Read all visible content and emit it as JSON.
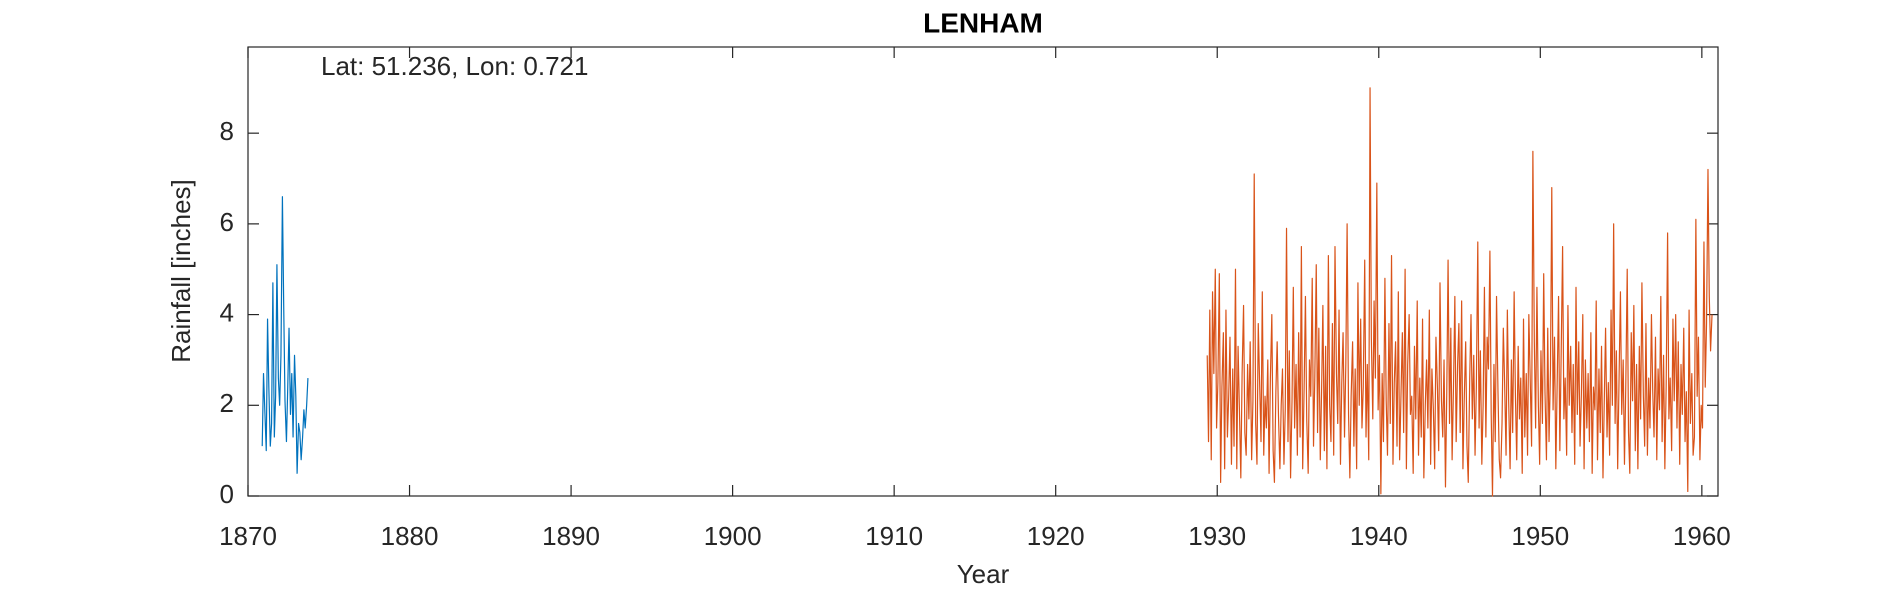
{
  "chart_data": {
    "type": "line",
    "title": "LENHAM",
    "annotation": "Lat: 51.236, Lon: 0.721",
    "xlabel": "Year",
    "ylabel": "Rainfall [inches]",
    "xlim": [
      1870,
      1961
    ],
    "xticks": [
      1870,
      1880,
      1890,
      1900,
      1910,
      1920,
      1930,
      1940,
      1950,
      1960
    ],
    "ylim": [
      0,
      9.9
    ],
    "yticks": [
      0,
      2,
      4,
      6,
      8
    ],
    "series": [
      {
        "color": "#0072BD",
        "x": [
          1870.88,
          1870.96,
          1871.04,
          1871.13,
          1871.21,
          1871.29,
          1871.38,
          1871.46,
          1871.54,
          1871.63,
          1871.71,
          1871.79,
          1871.88,
          1871.96,
          1872.04,
          1872.13,
          1872.21,
          1872.29,
          1872.38,
          1872.46,
          1872.54,
          1872.63,
          1872.71,
          1872.79,
          1872.88,
          1872.96,
          1873.04,
          1873.13,
          1873.21,
          1873.29,
          1873.38,
          1873.46,
          1873.54,
          1873.63,
          1873.71
        ],
        "values": [
          1.1,
          2.7,
          1.9,
          1.0,
          3.9,
          2.4,
          1.1,
          1.6,
          4.7,
          1.3,
          2.2,
          5.1,
          2.6,
          2.0,
          3.1,
          6.6,
          4.2,
          2.1,
          1.2,
          2.4,
          3.7,
          1.8,
          2.7,
          1.3,
          3.1,
          2.2,
          0.5,
          1.6,
          1.4,
          0.8,
          1.3,
          1.9,
          1.5,
          2.0,
          2.6
        ]
      },
      {
        "color": "#D95319",
        "x": [
          1929.38,
          1929.46,
          1929.54,
          1929.63,
          1929.71,
          1929.79,
          1929.88,
          1929.96,
          1930.04,
          1930.13,
          1930.21,
          1930.29,
          1930.38,
          1930.46,
          1930.54,
          1930.63,
          1930.71,
          1930.79,
          1930.88,
          1930.96,
          1931.04,
          1931.13,
          1931.21,
          1931.29,
          1931.38,
          1931.46,
          1931.54,
          1931.63,
          1931.71,
          1931.79,
          1931.88,
          1931.96,
          1932.04,
          1932.13,
          1932.21,
          1932.29,
          1932.38,
          1932.46,
          1932.54,
          1932.63,
          1932.71,
          1932.79,
          1932.88,
          1932.96,
          1933.04,
          1933.13,
          1933.21,
          1933.29,
          1933.38,
          1933.46,
          1933.54,
          1933.63,
          1933.71,
          1933.79,
          1933.88,
          1933.96,
          1934.04,
          1934.13,
          1934.21,
          1934.29,
          1934.38,
          1934.46,
          1934.54,
          1934.63,
          1934.71,
          1934.79,
          1934.88,
          1934.96,
          1935.04,
          1935.13,
          1935.21,
          1935.29,
          1935.38,
          1935.46,
          1935.54,
          1935.63,
          1935.71,
          1935.79,
          1935.88,
          1935.96,
          1936.04,
          1936.13,
          1936.21,
          1936.29,
          1936.38,
          1936.46,
          1936.54,
          1936.63,
          1936.71,
          1936.79,
          1936.88,
          1936.96,
          1937.04,
          1937.13,
          1937.21,
          1937.29,
          1937.38,
          1937.46,
          1937.54,
          1937.63,
          1937.71,
          1937.79,
          1937.88,
          1937.96,
          1938.04,
          1938.13,
          1938.21,
          1938.29,
          1938.38,
          1938.46,
          1938.54,
          1938.63,
          1938.71,
          1938.79,
          1938.88,
          1938.96,
          1939.04,
          1939.13,
          1939.21,
          1939.29,
          1939.38,
          1939.46,
          1939.54,
          1939.63,
          1939.71,
          1939.79,
          1939.88,
          1939.96,
          1940.04,
          1940.13,
          1940.21,
          1940.29,
          1940.38,
          1940.46,
          1940.54,
          1940.63,
          1940.71,
          1940.79,
          1940.88,
          1940.96,
          1941.04,
          1941.13,
          1941.21,
          1941.29,
          1941.38,
          1941.46,
          1941.54,
          1941.63,
          1941.71,
          1941.79,
          1941.88,
          1941.96,
          1942.04,
          1942.13,
          1942.21,
          1942.29,
          1942.38,
          1942.46,
          1942.54,
          1942.63,
          1942.71,
          1942.79,
          1942.88,
          1942.96,
          1943.04,
          1943.13,
          1943.21,
          1943.29,
          1943.38,
          1943.46,
          1943.54,
          1943.63,
          1943.71,
          1943.79,
          1943.88,
          1943.96,
          1944.04,
          1944.13,
          1944.21,
          1944.29,
          1944.38,
          1944.46,
          1944.54,
          1944.63,
          1944.71,
          1944.79,
          1944.88,
          1944.96,
          1945.04,
          1945.13,
          1945.21,
          1945.29,
          1945.38,
          1945.46,
          1945.54,
          1945.63,
          1945.71,
          1945.79,
          1945.88,
          1945.96,
          1946.04,
          1946.13,
          1946.21,
          1946.29,
          1946.38,
          1946.46,
          1946.54,
          1946.63,
          1946.71,
          1946.79,
          1946.88,
          1946.96,
          1947.04,
          1947.13,
          1947.21,
          1947.29,
          1947.38,
          1947.46,
          1947.54,
          1947.63,
          1947.71,
          1947.79,
          1947.88,
          1947.96,
          1948.04,
          1948.13,
          1948.21,
          1948.29,
          1948.38,
          1948.46,
          1948.54,
          1948.63,
          1948.71,
          1948.79,
          1948.88,
          1948.96,
          1949.04,
          1949.13,
          1949.21,
          1949.29,
          1949.38,
          1949.46,
          1949.54,
          1949.63,
          1949.71,
          1949.79,
          1949.88,
          1949.96,
          1950.04,
          1950.13,
          1950.21,
          1950.29,
          1950.38,
          1950.46,
          1950.54,
          1950.63,
          1950.71,
          1950.79,
          1950.88,
          1950.96,
          1951.04,
          1951.13,
          1951.21,
          1951.29,
          1951.38,
          1951.46,
          1951.54,
          1951.63,
          1951.71,
          1951.79,
          1951.88,
          1951.96,
          1952.04,
          1952.13,
          1952.21,
          1952.29,
          1952.38,
          1952.46,
          1952.54,
          1952.63,
          1952.71,
          1952.79,
          1952.88,
          1952.96,
          1953.04,
          1953.13,
          1953.21,
          1953.29,
          1953.38,
          1953.46,
          1953.54,
          1953.63,
          1953.71,
          1953.79,
          1953.88,
          1953.96,
          1954.04,
          1954.13,
          1954.21,
          1954.29,
          1954.38,
          1954.46,
          1954.54,
          1954.63,
          1954.71,
          1954.79,
          1954.88,
          1954.96,
          1955.04,
          1955.13,
          1955.21,
          1955.29,
          1955.38,
          1955.46,
          1955.54,
          1955.63,
          1955.71,
          1955.79,
          1955.88,
          1955.96,
          1956.04,
          1956.13,
          1956.21,
          1956.29,
          1956.38,
          1956.46,
          1956.54,
          1956.63,
          1956.71,
          1956.79,
          1956.88,
          1956.96,
          1957.04,
          1957.13,
          1957.21,
          1957.29,
          1957.38,
          1957.46,
          1957.54,
          1957.63,
          1957.71,
          1957.79,
          1957.88,
          1957.96,
          1958.04,
          1958.13,
          1958.21,
          1958.29,
          1958.38,
          1958.46,
          1958.54,
          1958.63,
          1958.71,
          1958.79,
          1958.88,
          1958.96,
          1959.04,
          1959.13,
          1959.21,
          1959.29,
          1959.38,
          1959.46,
          1959.54,
          1959.63,
          1959.71,
          1959.79,
          1959.88,
          1959.96,
          1960.04,
          1960.13,
          1960.21,
          1960.29,
          1960.38,
          1960.46,
          1960.54,
          1960.63
        ],
        "values": [
          3.1,
          1.2,
          4.1,
          0.8,
          4.5,
          2.7,
          5.0,
          1.5,
          2.5,
          4.9,
          0.3,
          2.4,
          3.6,
          0.6,
          4.1,
          1.3,
          2.2,
          3.5,
          0.7,
          2.8,
          1.1,
          5.0,
          0.6,
          3.3,
          1.8,
          0.4,
          2.7,
          4.2,
          1.4,
          0.9,
          2.9,
          1.7,
          3.4,
          0.8,
          2.1,
          7.1,
          1.6,
          0.7,
          3.8,
          2.4,
          1.2,
          4.5,
          0.9,
          2.2,
          1.5,
          3.0,
          0.5,
          2.6,
          4.0,
          1.0,
          0.3,
          2.3,
          3.4,
          1.8,
          0.6,
          2.0,
          2.8,
          0.7,
          1.9,
          5.9,
          1.2,
          3.2,
          0.4,
          2.1,
          4.6,
          1.5,
          2.9,
          0.9,
          3.6,
          1.3,
          5.5,
          0.6,
          2.4,
          4.4,
          1.7,
          0.5,
          3.0,
          2.2,
          4.8,
          1.1,
          2.6,
          5.1,
          1.4,
          3.7,
          0.8,
          2.3,
          4.2,
          1.0,
          3.3,
          0.6,
          5.3,
          2.0,
          1.2,
          3.8,
          0.9,
          5.5,
          2.7,
          1.6,
          4.1,
          0.7,
          2.5,
          3.6,
          1.3,
          2.9,
          6.0,
          1.8,
          0.4,
          2.2,
          3.4,
          1.1,
          2.8,
          0.6,
          4.7,
          2.0,
          3.9,
          1.5,
          2.4,
          5.2,
          1.3,
          2.9,
          0.8,
          9.0,
          3.5,
          1.7,
          4.3,
          2.6,
          6.9,
          1.9,
          3.1,
          0.05,
          2.7,
          1.2,
          4.8,
          2.1,
          0.9,
          3.8,
          1.6,
          5.3,
          0.7,
          2.5,
          3.4,
          1.1,
          4.5,
          0.8,
          2.3,
          3.6,
          1.4,
          5.0,
          0.6,
          2.9,
          4.0,
          1.8,
          2.2,
          0.5,
          3.3,
          1.7,
          4.3,
          0.9,
          2.6,
          1.3,
          3.9,
          0.4,
          2.0,
          3.0,
          1.5,
          4.1,
          0.7,
          2.8,
          1.9,
          0.6,
          3.5,
          2.4,
          1.0,
          4.7,
          2.1,
          1.3,
          3.0,
          0.2,
          2.3,
          5.2,
          1.6,
          3.7,
          0.8,
          2.5,
          4.4,
          1.2,
          2.9,
          3.8,
          1.4,
          4.3,
          0.6,
          2.1,
          3.4,
          1.1,
          0.3,
          2.6,
          4.0,
          1.7,
          3.1,
          0.9,
          2.4,
          5.6,
          1.5,
          3.2,
          0.7,
          2.0,
          4.6,
          1.3,
          3.5,
          2.8,
          5.4,
          1.8,
          0.0,
          2.9,
          1.2,
          4.4,
          2.3,
          0.8,
          0.4,
          1.6,
          3.7,
          2.5,
          0.9,
          4.1,
          2.1,
          0.6,
          3.0,
          1.4,
          4.5,
          2.2,
          0.8,
          3.3,
          1.7,
          2.6,
          0.5,
          3.9,
          1.3,
          2.7,
          0.9,
          4.0,
          2.5,
          1.1,
          7.6,
          3.4,
          1.5,
          4.6,
          2.0,
          0.7,
          3.2,
          1.6,
          4.9,
          2.3,
          0.8,
          3.7,
          1.2,
          2.8,
          6.8,
          1.9,
          3.5,
          0.6,
          2.4,
          4.4,
          1.0,
          3.1,
          5.5,
          1.7,
          2.6,
          0.9,
          4.2,
          2.0,
          3.3,
          1.4,
          2.9,
          0.7,
          4.6,
          1.8,
          3.4,
          1.1,
          2.2,
          4.0,
          0.6,
          3.0,
          1.5,
          2.7,
          1.2,
          3.6,
          0.5,
          2.4,
          1.9,
          4.3,
          0.8,
          2.8,
          1.4,
          3.3,
          0.4,
          2.1,
          3.7,
          1.3,
          2.5,
          0.9,
          4.1,
          2.0,
          6.0,
          1.6,
          3.2,
          0.6,
          2.7,
          4.5,
          1.8,
          3.0,
          0.7,
          2.4,
          5.0,
          1.4,
          0.5,
          3.6,
          2.1,
          4.2,
          1.0,
          2.9,
          0.6,
          3.3,
          1.7,
          4.7,
          2.2,
          1.1,
          3.8,
          0.9,
          2.6,
          1.5,
          4.0,
          2.3,
          1.3,
          3.5,
          0.8,
          2.8,
          1.9,
          4.4,
          1.2,
          3.1,
          0.6,
          2.4,
          5.8,
          1.7,
          2.6,
          1.0,
          3.9,
          2.1,
          4.0,
          1.5,
          3.4,
          0.7,
          2.9,
          1.8,
          3.7,
          1.2,
          2.3,
          0.1,
          4.1,
          1.6,
          2.7,
          0.9,
          1.3,
          6.1,
          2.2,
          3.5,
          0.8,
          2.0,
          1.5,
          5.6,
          2.4,
          3.8,
          7.2,
          4.4,
          3.2,
          4.0
        ]
      }
    ]
  }
}
